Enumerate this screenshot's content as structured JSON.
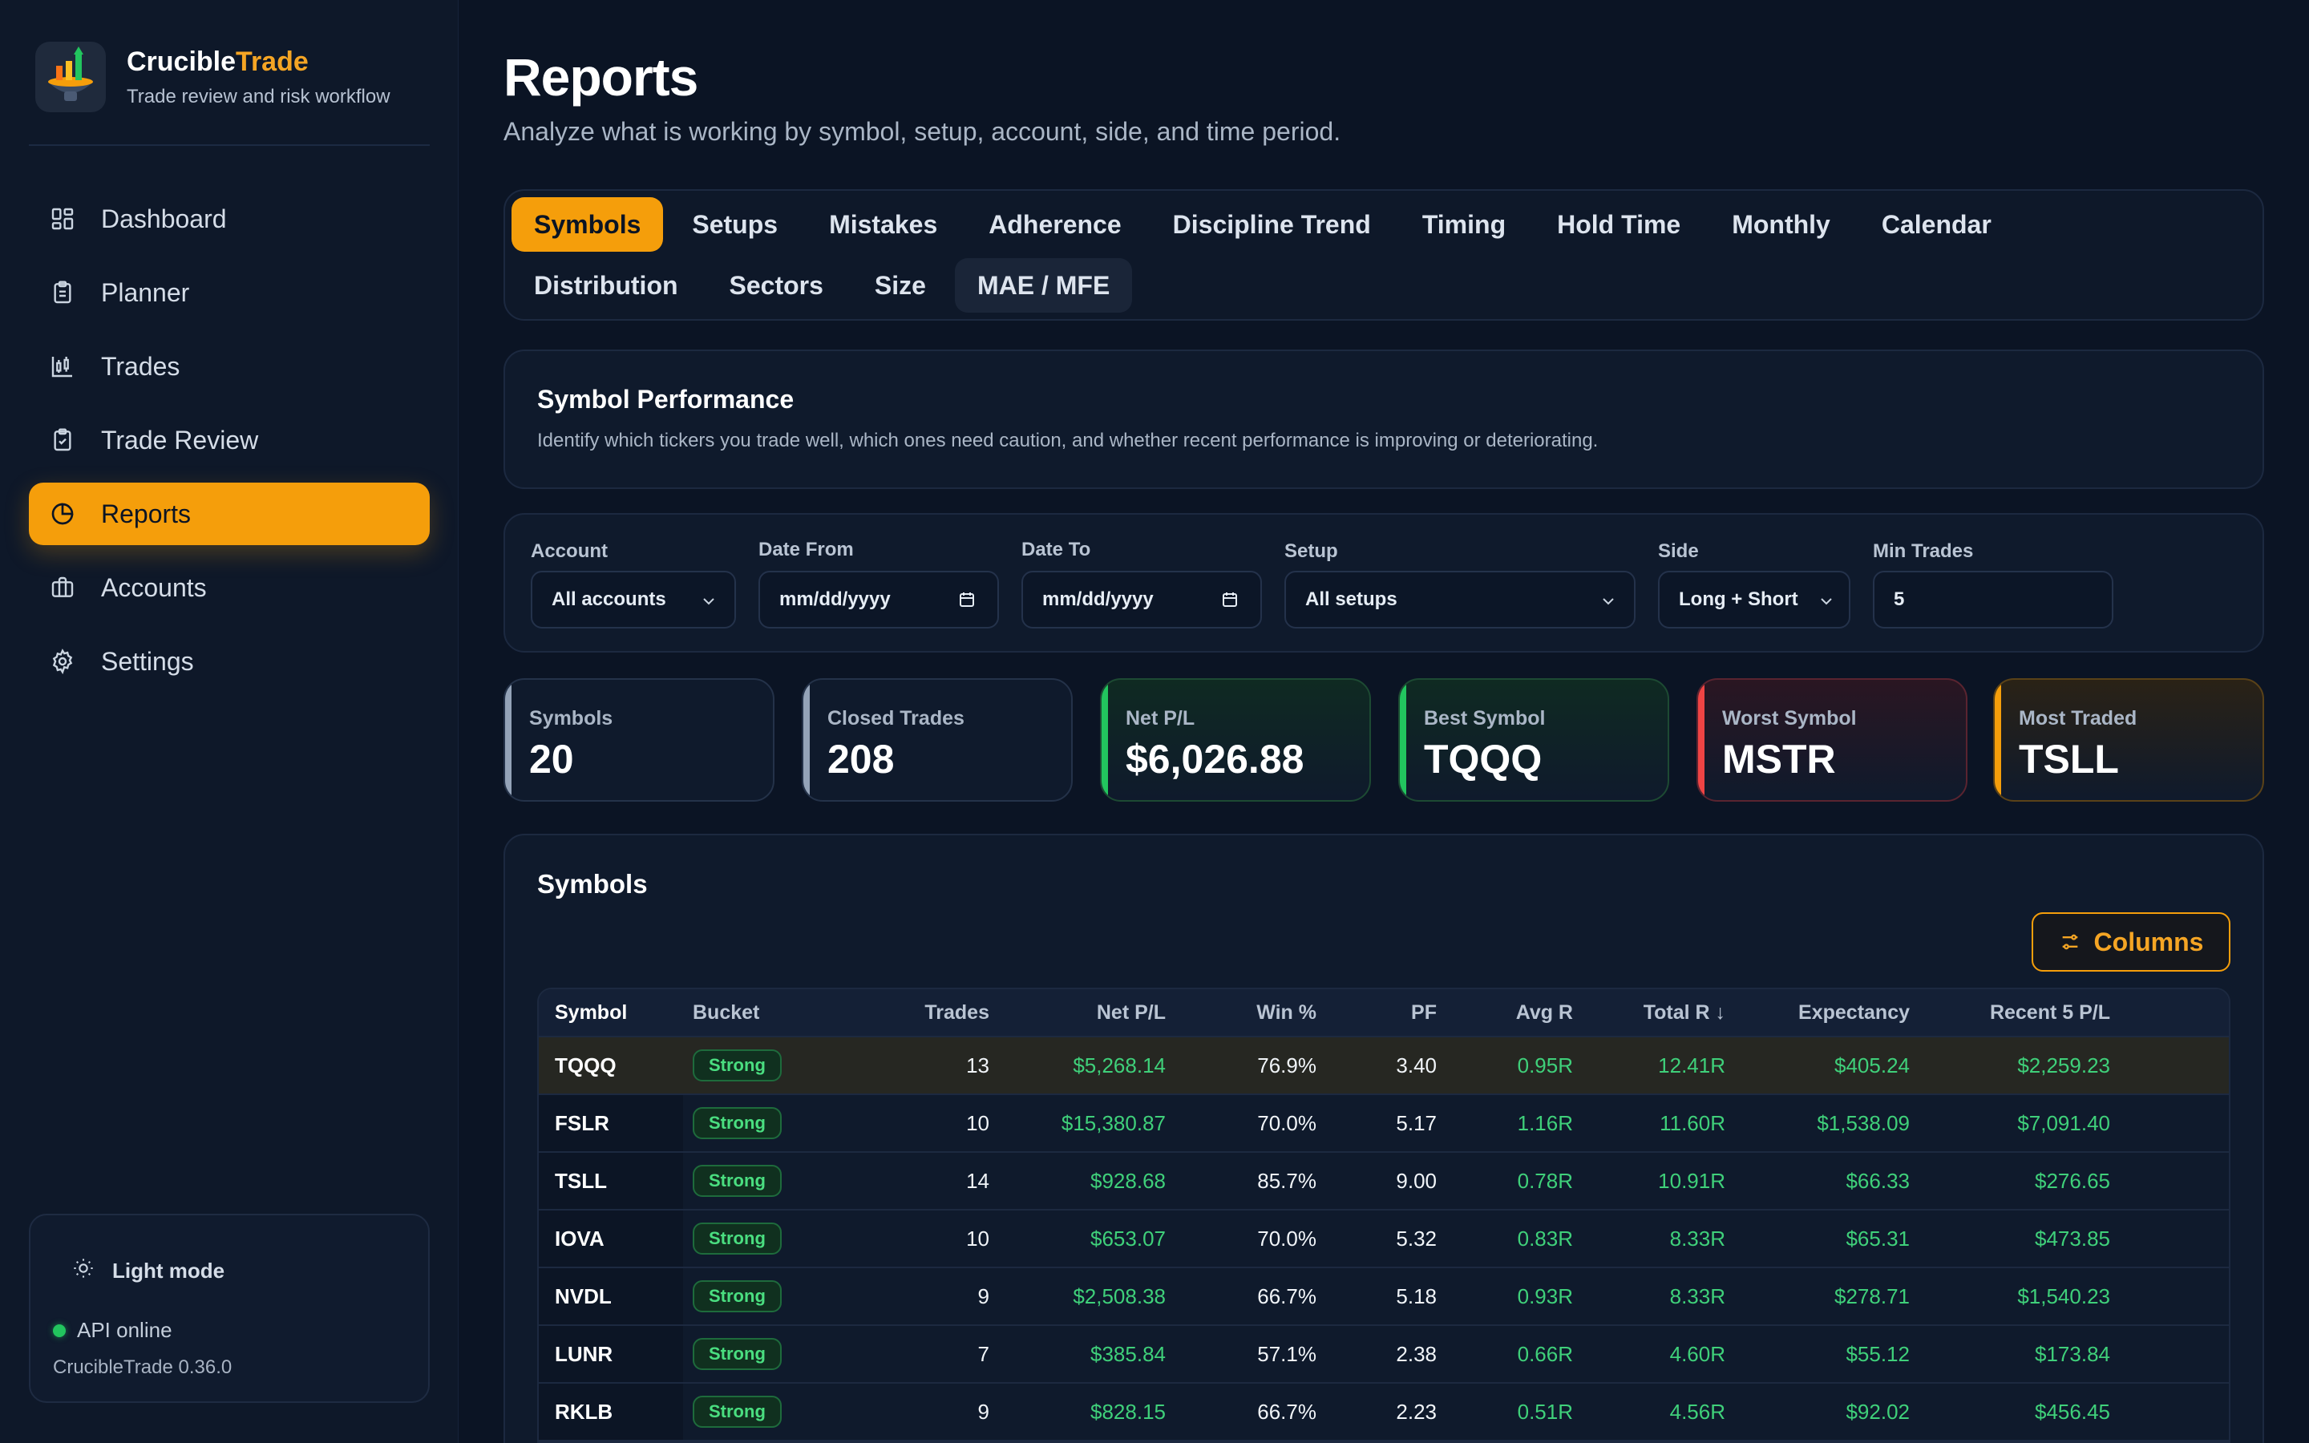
{
  "brand": {
    "name_main": "Crucible",
    "name_accent": "Trade",
    "tagline": "Trade review and risk workflow"
  },
  "nav": [
    {
      "label": "Dashboard",
      "icon": "dashboard-icon"
    },
    {
      "label": "Planner",
      "icon": "clipboard-icon"
    },
    {
      "label": "Trades",
      "icon": "candlestick-icon"
    },
    {
      "label": "Trade Review",
      "icon": "clipboard-check-icon"
    },
    {
      "label": "Reports",
      "icon": "pie-chart-icon",
      "active": true
    },
    {
      "label": "Accounts",
      "icon": "briefcase-icon"
    },
    {
      "label": "Settings",
      "icon": "gear-icon"
    }
  ],
  "footer": {
    "mode_label": "Light mode",
    "api_status": "API online",
    "version": "CrucibleTrade 0.36.0"
  },
  "page": {
    "title": "Reports",
    "subtitle": "Analyze what is working by symbol, setup, account, side, and time period."
  },
  "tabs": {
    "row1": [
      "Symbols",
      "Setups",
      "Mistakes",
      "Adherence",
      "Discipline Trend",
      "Timing",
      "Hold Time",
      "Monthly",
      "Calendar"
    ],
    "row2": [
      "Distribution",
      "Sectors",
      "Size",
      "MAE / MFE"
    ],
    "active": "Symbols"
  },
  "perf": {
    "title": "Symbol Performance",
    "description": "Identify which tickers you trade well, which ones need caution, and whether recent performance is improving or deteriorating."
  },
  "filters": {
    "account": {
      "label": "Account",
      "value": "All accounts"
    },
    "date_from": {
      "label": "Date From",
      "value": "mm/dd/yyyy"
    },
    "date_to": {
      "label": "Date To",
      "value": "mm/dd/yyyy"
    },
    "setup": {
      "label": "Setup",
      "value": "All setups"
    },
    "side": {
      "label": "Side",
      "value": "Long + Short"
    },
    "min_trades": {
      "label": "Min Trades",
      "value": "5"
    }
  },
  "stats": [
    {
      "label": "Symbols",
      "value": "20",
      "accent": "#94a3b8"
    },
    {
      "label": "Closed Trades",
      "value": "208",
      "accent": "#94a3b8"
    },
    {
      "label": "Net P/L",
      "value": "$6,026.88",
      "accent": "#22c55e"
    },
    {
      "label": "Best Symbol",
      "value": "TQQQ",
      "accent": "#22c55e"
    },
    {
      "label": "Worst Symbol",
      "value": "MSTR",
      "accent": "#ef4444"
    },
    {
      "label": "Most Traded",
      "value": "TSLL",
      "accent": "#f59e0b"
    }
  ],
  "table": {
    "title": "Symbols",
    "columns_button": "Columns",
    "headers": [
      "Symbol",
      "Bucket",
      "Trades",
      "Net P/L",
      "Win %",
      "PF",
      "Avg R",
      "Total R ↓",
      "Expectancy",
      "Recent 5 P/L"
    ],
    "rows": [
      [
        "TQQQ",
        "Strong",
        "13",
        "$5,268.14",
        "76.9%",
        "3.40",
        "0.95R",
        "12.41R",
        "$405.24",
        "$2,259.23"
      ],
      [
        "FSLR",
        "Strong",
        "10",
        "$15,380.87",
        "70.0%",
        "5.17",
        "1.16R",
        "11.60R",
        "$1,538.09",
        "$7,091.40"
      ],
      [
        "TSLL",
        "Strong",
        "14",
        "$928.68",
        "85.7%",
        "9.00",
        "0.78R",
        "10.91R",
        "$66.33",
        "$276.65"
      ],
      [
        "IOVA",
        "Strong",
        "10",
        "$653.07",
        "70.0%",
        "5.32",
        "0.83R",
        "8.33R",
        "$65.31",
        "$473.85"
      ],
      [
        "NVDL",
        "Strong",
        "9",
        "$2,508.38",
        "66.7%",
        "5.18",
        "0.93R",
        "8.33R",
        "$278.71",
        "$1,540.23"
      ],
      [
        "LUNR",
        "Strong",
        "7",
        "$385.84",
        "57.1%",
        "2.38",
        "0.66R",
        "4.60R",
        "$55.12",
        "$173.84"
      ],
      [
        "RKLB",
        "Strong",
        "9",
        "$828.15",
        "66.7%",
        "2.23",
        "0.51R",
        "4.56R",
        "$92.02",
        "$456.45"
      ]
    ]
  }
}
